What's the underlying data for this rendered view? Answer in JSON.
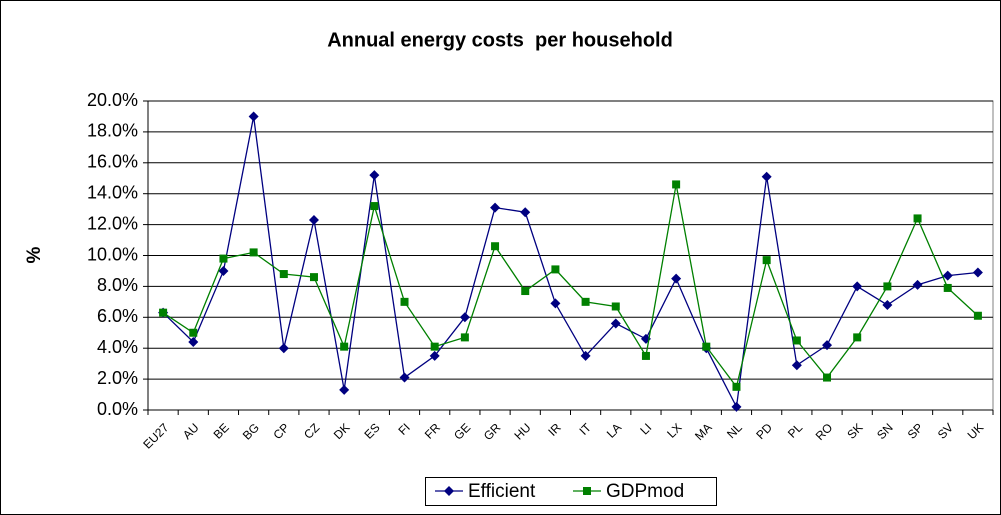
{
  "chart_data": {
    "type": "line",
    "title": "Annual energy costs  per household",
    "y_label": "%",
    "categories": [
      "EU27",
      "AU",
      "BE",
      "BG",
      "CP",
      "CZ",
      "DK",
      "ES",
      "FI",
      "FR",
      "GE",
      "GR",
      "HU",
      "IR",
      "IT",
      "LA",
      "LI",
      "LX",
      "MA",
      "NL",
      "PD",
      "PL",
      "RO",
      "SK",
      "SN",
      "SP",
      "SV",
      "UK"
    ],
    "series": [
      {
        "name": "Efficient",
        "color": "#000080",
        "marker": "diamond",
        "values": [
          6.3,
          4.4,
          9.0,
          19.0,
          4.0,
          12.3,
          1.3,
          15.2,
          2.1,
          3.5,
          6.0,
          13.1,
          12.8,
          6.9,
          3.5,
          5.6,
          4.6,
          8.5,
          4.0,
          0.2,
          15.1,
          2.9,
          4.2,
          8.0,
          6.8,
          8.1,
          8.7,
          8.9
        ]
      },
      {
        "name": "GDPmod",
        "color": "#008000",
        "marker": "square",
        "values": [
          6.3,
          5.0,
          9.8,
          10.2,
          8.8,
          8.6,
          4.1,
          13.2,
          7.0,
          4.1,
          4.7,
          10.6,
          7.7,
          9.1,
          7.0,
          6.7,
          3.5,
          14.6,
          4.1,
          1.5,
          9.7,
          4.5,
          2.1,
          4.7,
          8.0,
          12.4,
          7.9,
          6.1
        ]
      }
    ],
    "ylim": [
      0,
      20
    ],
    "yticks": [
      {
        "value": 0,
        "label": "0.0%"
      },
      {
        "value": 2,
        "label": "2.0%"
      },
      {
        "value": 4,
        "label": "4.0%"
      },
      {
        "value": 6,
        "label": "6.0%"
      },
      {
        "value": 8,
        "label": "8.0%"
      },
      {
        "value": 10,
        "label": "10.0%"
      },
      {
        "value": 12,
        "label": "12.0%"
      },
      {
        "value": 14,
        "label": "14.0%"
      },
      {
        "value": 16,
        "label": "16.0%"
      },
      {
        "value": 18,
        "label": "18.0%"
      },
      {
        "value": 20,
        "label": "20.0%"
      }
    ],
    "grid": true,
    "legend": "bottom"
  }
}
